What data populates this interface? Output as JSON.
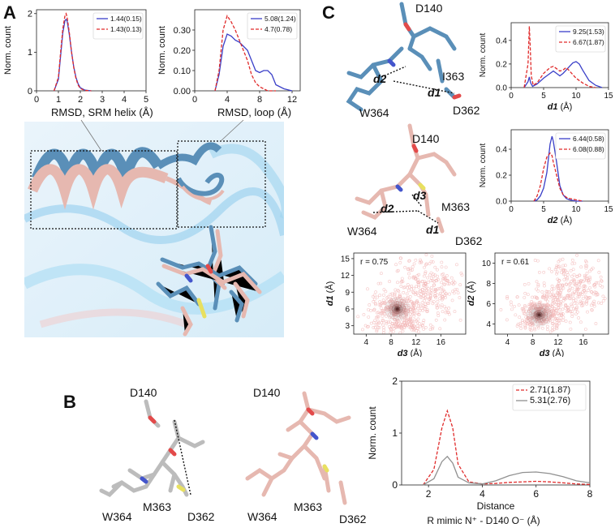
{
  "panels": {
    "a": "A",
    "b": "B",
    "c": "C"
  },
  "panel_a": {
    "rmsd_srm_label": "RMSD, SRM helix (Å)",
    "rmsd_loop_label": "RMSD, loop (Å)"
  },
  "panel_c": {
    "top_labels": {
      "d140": "D140",
      "i363": "I363",
      "w364": "W364",
      "d362": "D362",
      "d1": "d1",
      "d2": "d2"
    },
    "mid_labels": {
      "d140": "D140",
      "m363": "M363",
      "w364": "W364",
      "d362": "D362",
      "d1": "d1",
      "d2": "d2",
      "d3": "d3"
    }
  },
  "panel_b": {
    "left_labels": {
      "d140": "D140",
      "w364": "W364",
      "m363": "M363",
      "d362": "D362"
    },
    "right_labels": {
      "d140": "D140",
      "w364": "W364",
      "m363": "M363",
      "d362": "D362"
    }
  },
  "colors": {
    "blue": "#3a3fc8",
    "red": "#e02a2a",
    "gray": "#909090",
    "scatter_light": "#f2b8b8",
    "scatter_dark": "#3a0a0a",
    "steel_blue": "#5a8fb8",
    "pink": "#e6b8b0"
  },
  "chart_data": [
    {
      "id": "a1",
      "type": "line",
      "xlabel": "",
      "ylabel": "Norm. count",
      "xlim": [
        0,
        5
      ],
      "ylim": [
        0,
        2.1
      ],
      "xticks": [
        0,
        1,
        2,
        3,
        4,
        5
      ],
      "yticks": [
        0,
        1,
        2
      ],
      "series": [
        {
          "name": "1.44(0.15)",
          "color": "blue",
          "dash": false,
          "x": [
            0.8,
            1.0,
            1.1,
            1.2,
            1.3,
            1.35,
            1.4,
            1.5,
            1.6,
            1.7,
            1.8,
            1.9,
            2.0,
            2.2,
            2.5
          ],
          "y": [
            0,
            0.3,
            0.9,
            1.5,
            1.82,
            1.85,
            1.8,
            1.45,
            1.0,
            0.62,
            0.35,
            0.18,
            0.08,
            0.02,
            0
          ]
        },
        {
          "name": "1.43(0.13)",
          "color": "red",
          "dash": true,
          "x": [
            0.8,
            1.0,
            1.1,
            1.2,
            1.3,
            1.35,
            1.4,
            1.5,
            1.6,
            1.7,
            1.8,
            1.9,
            2.0,
            2.2,
            2.5
          ],
          "y": [
            0,
            0.35,
            1.0,
            1.6,
            1.95,
            2.0,
            1.9,
            1.5,
            1.0,
            0.6,
            0.32,
            0.15,
            0.06,
            0.01,
            0
          ]
        }
      ]
    },
    {
      "id": "a2",
      "type": "line",
      "xlabel": "",
      "ylabel": "Norm. count",
      "xlim": [
        0,
        13
      ],
      "ylim": [
        0,
        0.4
      ],
      "xticks": [
        0,
        4,
        8,
        12
      ],
      "yticks": [
        0.0,
        0.1,
        0.2,
        0.3
      ],
      "ytick_labels": [
        "0.00",
        "0.10",
        "0.20",
        "0.30"
      ],
      "series": [
        {
          "name": "5.08(1.24)",
          "color": "blue",
          "dash": false,
          "x": [
            2.5,
            3,
            3.5,
            4,
            4.5,
            5,
            5.5,
            6,
            6.5,
            7,
            7.5,
            8,
            8.5,
            9,
            9.5,
            10,
            11,
            12
          ],
          "y": [
            0,
            0.08,
            0.22,
            0.28,
            0.27,
            0.25,
            0.24,
            0.22,
            0.2,
            0.15,
            0.1,
            0.09,
            0.1,
            0.1,
            0.08,
            0.03,
            0.01,
            0
          ]
        },
        {
          "name": "4.7(0.78)",
          "color": "red",
          "dash": true,
          "x": [
            2.5,
            3,
            3.5,
            4,
            4.5,
            5,
            5.5,
            6,
            6.5,
            7,
            7.5,
            8,
            8.5,
            9,
            10
          ],
          "y": [
            0,
            0.1,
            0.3,
            0.37,
            0.34,
            0.3,
            0.25,
            0.2,
            0.15,
            0.08,
            0.04,
            0.02,
            0.01,
            0,
            0
          ]
        }
      ]
    },
    {
      "id": "c1",
      "type": "line",
      "xlabel": "d1 (Å)",
      "ylabel": "Norm. count",
      "xlim": [
        0,
        15
      ],
      "ylim": [
        0,
        0.55
      ],
      "xticks": [
        0,
        5,
        10,
        15
      ],
      "yticks": [
        0.0,
        0.2,
        0.4
      ],
      "ytick_labels": [
        "0.0",
        "0.2",
        "0.4"
      ],
      "series": [
        {
          "name": "9.25(1.53)",
          "color": "blue",
          "dash": false,
          "x": [
            2,
            2.6,
            2.8,
            3,
            3.3,
            4,
            5,
            6,
            6.5,
            7,
            7.5,
            8,
            8.5,
            9,
            9.5,
            10,
            10.5,
            11,
            12,
            13,
            14
          ],
          "y": [
            0,
            0.05,
            0.09,
            0.04,
            0.01,
            0.03,
            0.08,
            0.12,
            0.14,
            0.12,
            0.1,
            0.12,
            0.15,
            0.18,
            0.21,
            0.22,
            0.2,
            0.15,
            0.06,
            0.02,
            0
          ]
        },
        {
          "name": "6.67(1.87)",
          "color": "red",
          "dash": true,
          "x": [
            2,
            2.6,
            2.8,
            2.9,
            3.1,
            3.4,
            4,
            5,
            6,
            6.5,
            7,
            7.5,
            8,
            8.5,
            9,
            10,
            11,
            12,
            13
          ],
          "y": [
            0,
            0.2,
            0.52,
            0.4,
            0.1,
            0.02,
            0.04,
            0.12,
            0.17,
            0.18,
            0.16,
            0.14,
            0.15,
            0.17,
            0.14,
            0.08,
            0.04,
            0.01,
            0
          ]
        }
      ]
    },
    {
      "id": "c2",
      "type": "line",
      "xlabel": "d2 (Å)",
      "ylabel": "Norm. count",
      "xlim": [
        0,
        15
      ],
      "ylim": [
        0,
        0.55
      ],
      "xticks": [
        0,
        5,
        10,
        15
      ],
      "yticks": [
        0.0,
        0.2,
        0.4
      ],
      "ytick_labels": [
        "0.0",
        "0.2",
        "0.4"
      ],
      "series": [
        {
          "name": "6.44(0.58)",
          "color": "blue",
          "dash": false,
          "x": [
            3.5,
            4,
            4.5,
            5,
            5.5,
            6,
            6.3,
            6.5,
            7,
            7.5,
            8,
            8.5,
            9,
            10,
            11
          ],
          "y": [
            0,
            0.01,
            0.04,
            0.1,
            0.22,
            0.44,
            0.5,
            0.46,
            0.3,
            0.12,
            0.05,
            0.02,
            0.01,
            0,
            0
          ]
        },
        {
          "name": "6.08(0.88)",
          "color": "red",
          "dash": true,
          "x": [
            3.5,
            4,
            4.5,
            5,
            5.5,
            6,
            6.3,
            6.5,
            7,
            7.5,
            8,
            8.5,
            9,
            10,
            11
          ],
          "y": [
            0,
            0.04,
            0.12,
            0.25,
            0.34,
            0.37,
            0.35,
            0.3,
            0.2,
            0.1,
            0.05,
            0.03,
            0.02,
            0.01,
            0
          ]
        }
      ]
    },
    {
      "id": "c3",
      "type": "scatter",
      "xlabel": "d3 (Å)",
      "ylabel": "d1 (Å)",
      "xlim": [
        2,
        20
      ],
      "ylim": [
        1.5,
        16
      ],
      "xticks": [
        4,
        8,
        12,
        16
      ],
      "yticks": [
        3,
        6,
        9,
        12,
        15
      ],
      "annotation": "r = 0.75"
    },
    {
      "id": "c4",
      "type": "scatter",
      "xlabel": "d3 (Å)",
      "ylabel": "d2 (Å)",
      "xlim": [
        2,
        20
      ],
      "ylim": [
        3,
        11
      ],
      "xticks": [
        4,
        8,
        12,
        16
      ],
      "yticks": [
        4,
        6,
        8,
        10
      ],
      "annotation": "r = 0.61"
    },
    {
      "id": "b1",
      "type": "line",
      "xlabel": "R mimic N⁺ - D140 O⁻  (Å)",
      "ylabel": "Norm. count",
      "extra_xlabel": "Distance",
      "xlim": [
        1,
        8
      ],
      "ylim": [
        0,
        2
      ],
      "xticks": [
        2,
        4,
        6,
        8
      ],
      "yticks": [
        0,
        1,
        2
      ],
      "series": [
        {
          "name": "2.71(1.87)",
          "color": "red",
          "dash": true,
          "x": [
            1.8,
            2.2,
            2.5,
            2.7,
            2.9,
            3.1,
            3.5,
            4,
            4.5,
            5,
            5.5,
            6,
            6.5,
            7,
            7.5,
            8
          ],
          "y": [
            0,
            0.3,
            1.1,
            1.43,
            1.1,
            0.4,
            0.06,
            0.02,
            0.03,
            0.05,
            0.06,
            0.07,
            0.06,
            0.04,
            0.02,
            0.01
          ]
        },
        {
          "name": "5.31(2.76)",
          "color": "gray",
          "dash": false,
          "x": [
            1.8,
            2.2,
            2.5,
            2.7,
            2.9,
            3.1,
            3.5,
            4,
            4.5,
            5,
            5.5,
            6,
            6.5,
            7,
            7.5,
            8
          ],
          "y": [
            0,
            0.12,
            0.45,
            0.55,
            0.42,
            0.15,
            0.04,
            0.02,
            0.08,
            0.18,
            0.24,
            0.25,
            0.22,
            0.16,
            0.08,
            0.04
          ]
        }
      ]
    }
  ]
}
